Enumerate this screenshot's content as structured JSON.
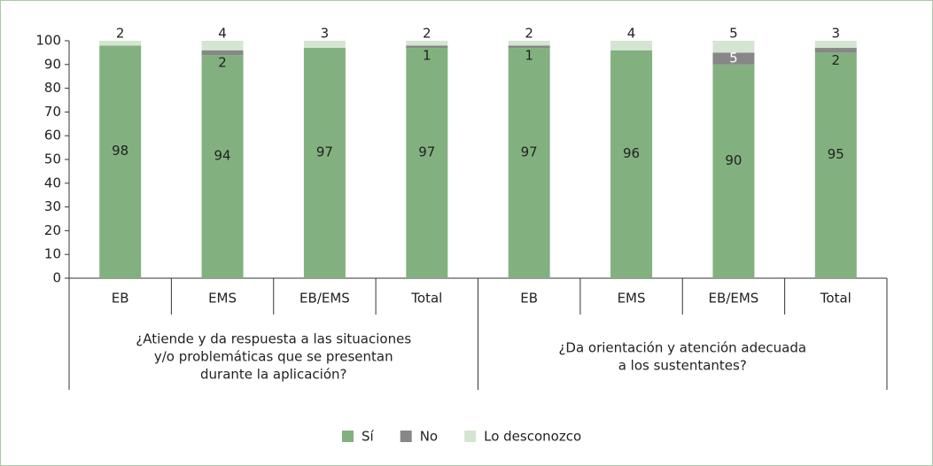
{
  "chart_data": {
    "type": "stacked_bar",
    "categories": [
      "EB",
      "EMS",
      "EB/EMS",
      "Total",
      "EB",
      "EMS",
      "EB/EMS",
      "Total"
    ],
    "groups": [
      {
        "label": [
          "¿Atiende y da respuesta a las situaciones",
          "y/o problemáticas que se presentan",
          "durante la aplicación?"
        ]
      },
      {
        "label": [
          "¿Da orientación y atención adecuada",
          "a los sustentantes?"
        ]
      }
    ],
    "series": [
      {
        "name": "Sí",
        "color": "#82b17f",
        "values": [
          98,
          94,
          97,
          97,
          97,
          96,
          90,
          95
        ]
      },
      {
        "name": "No",
        "color": "#878787",
        "values": [
          null,
          2,
          null,
          1,
          1,
          null,
          5,
          2
        ]
      },
      {
        "name": "Lo desconozco",
        "color": "#d4e5d2",
        "values": [
          2,
          4,
          3,
          2,
          2,
          4,
          5,
          3
        ]
      }
    ],
    "ylim": [
      0,
      100
    ],
    "yticks": [
      0,
      10,
      20,
      30,
      40,
      50,
      60,
      70,
      80,
      90,
      100
    ],
    "legend": "bottom"
  }
}
